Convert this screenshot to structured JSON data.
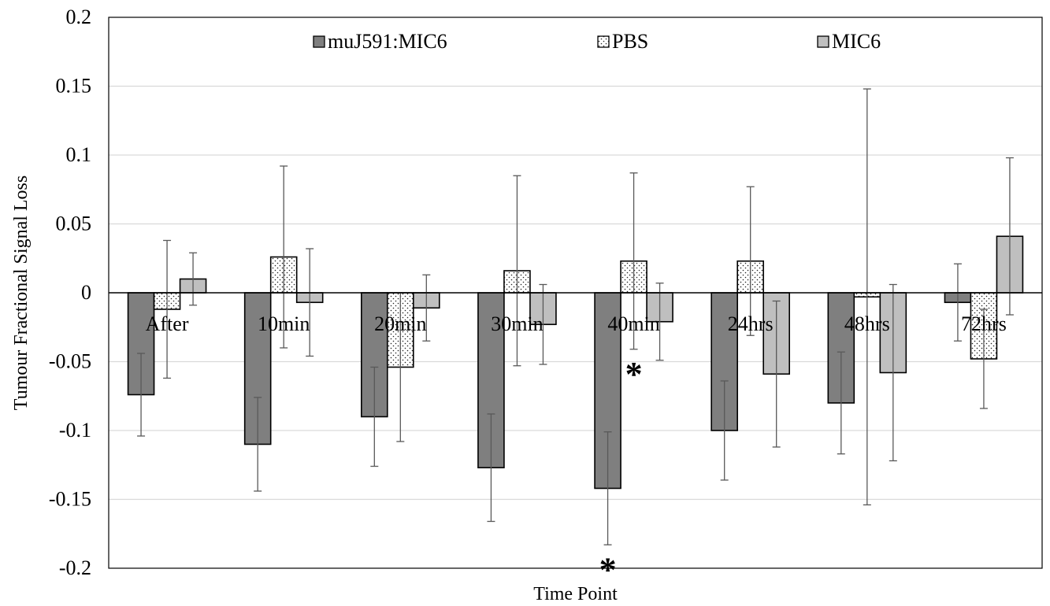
{
  "chart_data": {
    "type": "bar",
    "title": "",
    "xlabel": "Time Point",
    "ylabel": "Tumour Fractional Signal Loss",
    "ylim": [
      -0.2,
      0.2
    ],
    "yticks": [
      0.2,
      0.15,
      0.1,
      0.05,
      0,
      -0.05,
      -0.1,
      -0.15,
      -0.2
    ],
    "ytick_labels": [
      "0.2",
      "0.15",
      "0.1",
      "0.05",
      "0",
      "-0.05",
      "-0.1",
      "-0.15",
      "-0.2"
    ],
    "grid": "horizontal",
    "legend_position": "top",
    "categories": [
      "After",
      "10min",
      "20min",
      "30min",
      "40min",
      "24hrs",
      "48hrs",
      "72hrs"
    ],
    "series": [
      {
        "name": "muJ591:MIC6",
        "pattern": "solid-dark",
        "color": "#7f7f7f",
        "values": [
          -0.074,
          -0.11,
          -0.09,
          -0.127,
          -0.142,
          -0.1,
          -0.08,
          -0.007
        ],
        "error": [
          0.03,
          0.034,
          0.036,
          0.039,
          0.041,
          0.036,
          0.037,
          0.028
        ]
      },
      {
        "name": "PBS",
        "pattern": "dotted",
        "color": "#ffffff",
        "values": [
          -0.012,
          0.026,
          -0.054,
          0.016,
          0.023,
          0.023,
          -0.003,
          -0.048
        ],
        "error": [
          0.05,
          0.066,
          0.054,
          0.069,
          0.064,
          0.054,
          0.151,
          0.036
        ]
      },
      {
        "name": "MIC6",
        "pattern": "solid-light",
        "color": "#bfbfbf",
        "values": [
          0.01,
          -0.007,
          -0.011,
          -0.023,
          -0.021,
          -0.059,
          -0.058,
          0.041
        ],
        "error": [
          0.019,
          0.039,
          0.024,
          0.029,
          0.028,
          0.053,
          0.064,
          0.057
        ]
      }
    ],
    "annotations": [
      {
        "text": "*",
        "category": "40min",
        "series": "PBS",
        "placement": "below-error-bar"
      },
      {
        "text": "*",
        "category": "40min",
        "series": "muJ591:MIC6",
        "placement": "below-error-bar"
      }
    ],
    "colors": {
      "dark_bar": "#7f7f7f",
      "light_bar": "#bfbfbf",
      "grid": "#d9d9d9",
      "error_bar": "#595959",
      "border": "#000000"
    }
  }
}
